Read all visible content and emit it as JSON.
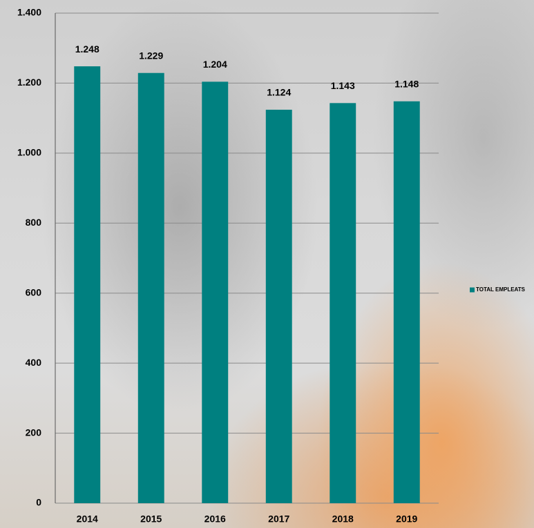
{
  "chart_data": {
    "type": "bar",
    "categories": [
      "2014",
      "2015",
      "2016",
      "2017",
      "2018",
      "2019"
    ],
    "series": [
      {
        "name": "TOTAL EMPLEATS",
        "color": "#008080",
        "values": [
          1248,
          1229,
          1204,
          1124,
          1143,
          1148
        ],
        "value_labels": [
          "1.248",
          "1.229",
          "1.204",
          "1.124",
          "1.143",
          "1.148"
        ]
      }
    ],
    "ylim": [
      0,
      1400
    ],
    "yticks": [
      0,
      200,
      400,
      600,
      800,
      {
        "value": 1000,
        "label": "1.000"
      },
      {
        "value": 1200,
        "label": "1.200"
      },
      {
        "value": 1400,
        "label": "1.400"
      }
    ],
    "grid": true,
    "legend": "right"
  }
}
